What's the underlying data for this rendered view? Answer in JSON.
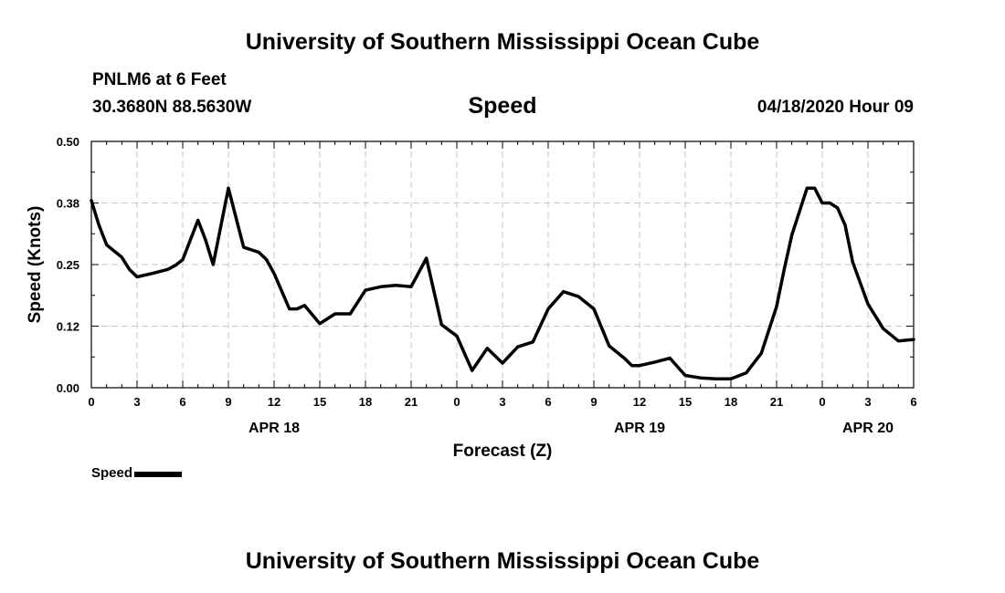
{
  "header": {
    "title": "University of Southern Mississippi Ocean Cube",
    "station": "PNLM6 at 6 Feet",
    "coords": "30.3680N 88.5630W",
    "datetime": "04/18/2020 Hour 09",
    "footer_title": "University of Southern Mississippi Ocean Cube"
  },
  "chart_data": {
    "type": "line",
    "title": "Speed",
    "xlabel": "Forecast (Z)",
    "ylabel": "Speed (Knots)",
    "ylim": [
      0,
      0.5
    ],
    "yticks": [
      "0.00",
      "0.12",
      "0.25",
      "0.38",
      "0.50"
    ],
    "xlim": [
      0,
      54
    ],
    "xticks": [
      "0",
      "3",
      "6",
      "9",
      "12",
      "15",
      "18",
      "21",
      "0",
      "3",
      "6",
      "9",
      "12",
      "15",
      "18",
      "21",
      "0",
      "3",
      "6"
    ],
    "day_labels": [
      {
        "x": 12,
        "text": "APR 18"
      },
      {
        "x": 36,
        "text": "APR 19"
      },
      {
        "x": 51,
        "text": "APR 20"
      }
    ],
    "grid": true,
    "legend_position": "bottom-left",
    "series": [
      {
        "name": "Speed",
        "color": "#000000",
        "x": [
          0,
          0.5,
          1,
          2,
          2.5,
          3,
          4,
          5,
          5.5,
          6,
          7,
          7.5,
          8,
          9,
          10,
          11,
          11.5,
          12,
          13,
          13.5,
          14,
          15,
          16,
          17,
          18,
          19,
          20,
          21,
          22,
          23,
          24,
          25,
          26,
          27,
          28,
          29,
          30,
          31,
          32,
          33,
          34,
          35,
          35.5,
          36,
          37,
          38,
          39,
          40,
          41,
          42,
          43,
          44,
          45,
          45.5,
          46,
          47,
          47.5,
          48,
          48.5,
          49,
          49.5,
          50,
          51,
          52,
          53,
          54
        ],
        "values": [
          0.38,
          0.33,
          0.29,
          0.265,
          0.24,
          0.225,
          0.232,
          0.24,
          0.248,
          0.26,
          0.34,
          0.3,
          0.25,
          0.405,
          0.285,
          0.275,
          0.26,
          0.232,
          0.16,
          0.16,
          0.167,
          0.13,
          0.15,
          0.15,
          0.198,
          0.205,
          0.208,
          0.205,
          0.263,
          0.128,
          0.105,
          0.035,
          0.08,
          0.05,
          0.083,
          0.093,
          0.16,
          0.195,
          0.185,
          0.16,
          0.085,
          0.06,
          0.045,
          0.045,
          0.052,
          0.06,
          0.025,
          0.02,
          0.018,
          0.018,
          0.03,
          0.07,
          0.165,
          0.24,
          0.31,
          0.405,
          0.405,
          0.375,
          0.375,
          0.365,
          0.33,
          0.255,
          0.17,
          0.12,
          0.095,
          0.098
        ]
      }
    ]
  }
}
